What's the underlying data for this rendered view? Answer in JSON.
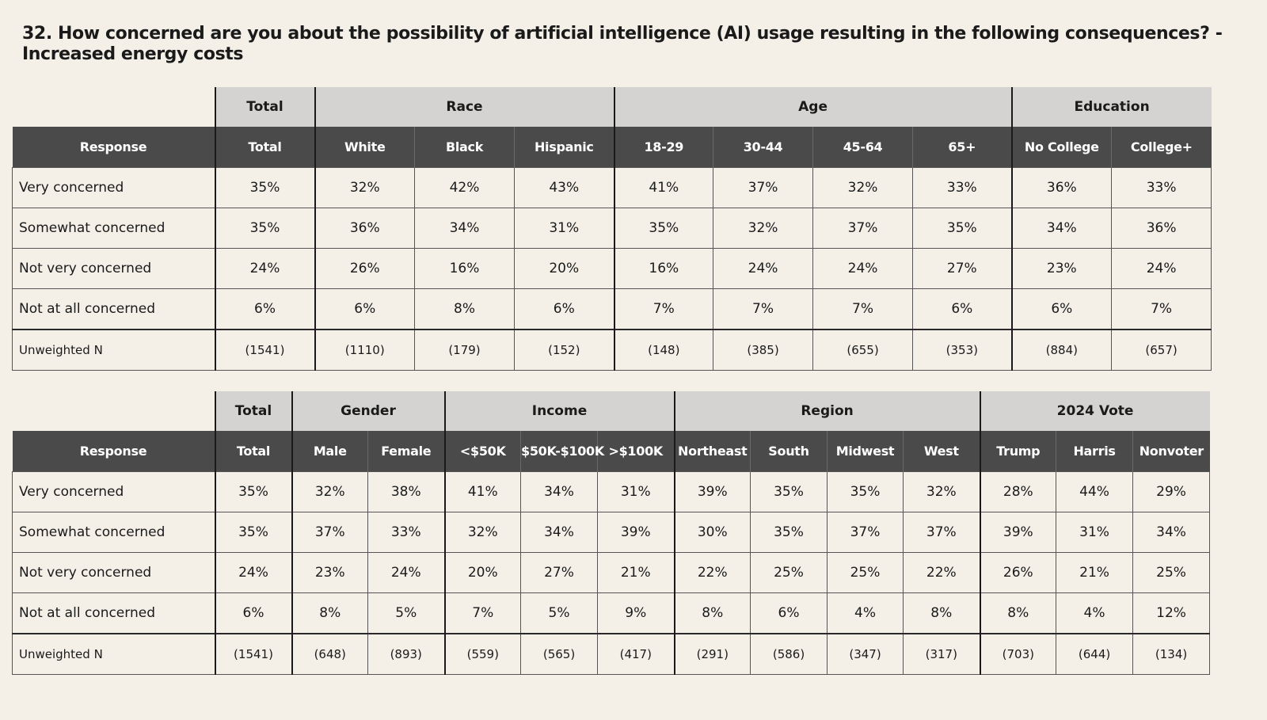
{
  "title": "32. How concerned are you about the possibility of artificial intelligence (AI) usage resulting in the following consequences? - Increased energy costs",
  "table1": {
    "groups": [
      {
        "label": "Total",
        "span": 1
      },
      {
        "label": "Race",
        "span": 3
      },
      {
        "label": "Age",
        "span": 4
      },
      {
        "label": "Education",
        "span": 2
      }
    ],
    "columns": [
      "Response",
      "Total",
      "White",
      "Black",
      "Hispanic",
      "18-29",
      "30-44",
      "45-64",
      "65+",
      "No College",
      "College+"
    ],
    "rows": [
      {
        "label": "Very concerned",
        "values": [
          "35%",
          "32%",
          "42%",
          "43%",
          "41%",
          "37%",
          "32%",
          "33%",
          "36%",
          "33%"
        ]
      },
      {
        "label": "Somewhat concerned",
        "values": [
          "35%",
          "36%",
          "34%",
          "31%",
          "35%",
          "32%",
          "37%",
          "35%",
          "34%",
          "36%"
        ]
      },
      {
        "label": "Not very concerned",
        "values": [
          "24%",
          "26%",
          "16%",
          "20%",
          "16%",
          "24%",
          "24%",
          "27%",
          "23%",
          "24%"
        ]
      },
      {
        "label": "Not at all concerned",
        "values": [
          "6%",
          "6%",
          "8%",
          "6%",
          "7%",
          "7%",
          "7%",
          "6%",
          "6%",
          "7%"
        ]
      }
    ],
    "n_row": {
      "label": "Unweighted N",
      "values": [
        "(1541)",
        "(1110)",
        "(179)",
        "(152)",
        "(148)",
        "(385)",
        "(655)",
        "(353)",
        "(884)",
        "(657)"
      ]
    }
  },
  "table2": {
    "groups": [
      {
        "label": "Total",
        "span": 1
      },
      {
        "label": "Gender",
        "span": 2
      },
      {
        "label": "Income",
        "span": 3
      },
      {
        "label": "Region",
        "span": 4
      },
      {
        "label": "2024 Vote",
        "span": 3
      }
    ],
    "columns": [
      "Response",
      "Total",
      "Male",
      "Female",
      "<$50K",
      "$50K-$100K",
      ">$100K",
      "Northeast",
      "South",
      "Midwest",
      "West",
      "Trump",
      "Harris",
      "Nonvoter"
    ],
    "rows": [
      {
        "label": "Very concerned",
        "values": [
          "35%",
          "32%",
          "38%",
          "41%",
          "34%",
          "31%",
          "39%",
          "35%",
          "35%",
          "32%",
          "28%",
          "44%",
          "29%"
        ]
      },
      {
        "label": "Somewhat concerned",
        "values": [
          "35%",
          "37%",
          "33%",
          "32%",
          "34%",
          "39%",
          "30%",
          "35%",
          "37%",
          "37%",
          "39%",
          "31%",
          "34%"
        ]
      },
      {
        "label": "Not very concerned",
        "values": [
          "24%",
          "23%",
          "24%",
          "20%",
          "27%",
          "21%",
          "22%",
          "25%",
          "25%",
          "22%",
          "26%",
          "21%",
          "25%"
        ]
      },
      {
        "label": "Not at all concerned",
        "values": [
          "6%",
          "8%",
          "5%",
          "7%",
          "5%",
          "9%",
          "8%",
          "6%",
          "4%",
          "8%",
          "8%",
          "4%",
          "12%"
        ]
      }
    ],
    "n_row": {
      "label": "Unweighted N",
      "values": [
        "(1541)",
        "(648)",
        "(893)",
        "(559)",
        "(565)",
        "(417)",
        "(291)",
        "(586)",
        "(347)",
        "(317)",
        "(703)",
        "(644)",
        "(134)"
      ]
    }
  }
}
